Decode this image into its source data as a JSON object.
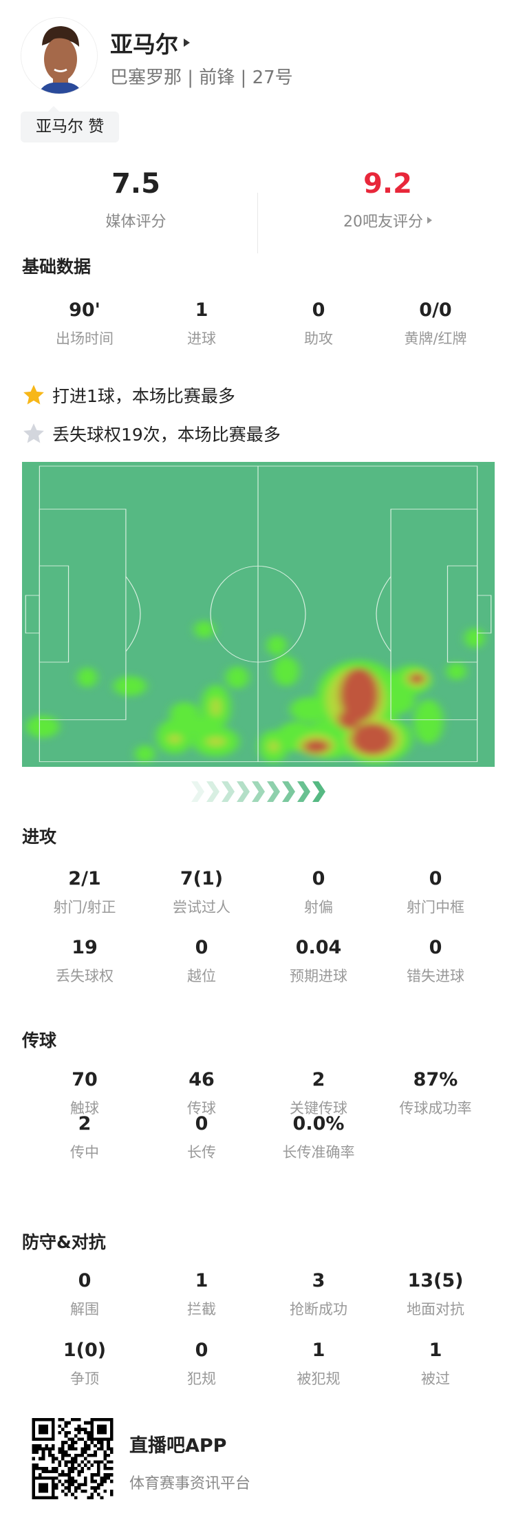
{
  "player": {
    "name": "亚马尔",
    "subtitle": "巴塞罗那 | 前锋 | 27号",
    "badge": "亚马尔 赞"
  },
  "ratings": {
    "media": {
      "value": "7.5",
      "label": "媒体评分"
    },
    "fans": {
      "value": "9.2",
      "label": "20吧友评分",
      "color": "#e8273a"
    }
  },
  "basic": {
    "title": "基础数据",
    "stats": [
      {
        "v": "90'",
        "l": "出场时间"
      },
      {
        "v": "1",
        "l": "进球"
      },
      {
        "v": "0",
        "l": "助攻"
      },
      {
        "v": "0/0",
        "l": "黄牌/红牌"
      }
    ]
  },
  "highlights": [
    {
      "icon": "gold-star",
      "text": "打进1球，本场比赛最多"
    },
    {
      "icon": "silver-star",
      "text": "丢失球权19次，本场比赛最多"
    }
  ],
  "attack": {
    "title": "进攻",
    "rows": [
      [
        {
          "v": "2/1",
          "l": "射门/射正"
        },
        {
          "v": "7(1)",
          "l": "尝试过人"
        },
        {
          "v": "0",
          "l": "射偏"
        },
        {
          "v": "0",
          "l": "射门中框"
        }
      ],
      [
        {
          "v": "19",
          "l": "丢失球权"
        },
        {
          "v": "0",
          "l": "越位"
        },
        {
          "v": "0.04",
          "l": "预期进球"
        },
        {
          "v": "0",
          "l": "错失进球"
        }
      ]
    ]
  },
  "passing": {
    "title": "传球",
    "rows": [
      [
        {
          "v": "70",
          "l": "触球"
        },
        {
          "v": "46",
          "l": "传球"
        },
        {
          "v": "2",
          "l": "关键传球"
        },
        {
          "v": "87%",
          "l": "传球成功率"
        }
      ],
      [
        {
          "v": "2",
          "l": "传中"
        },
        {
          "v": "0",
          "l": "长传"
        },
        {
          "v": "0.0%",
          "l": "长传准确率"
        }
      ]
    ]
  },
  "defense": {
    "title": "防守&对抗",
    "rows": [
      [
        {
          "v": "0",
          "l": "解围"
        },
        {
          "v": "1",
          "l": "拦截"
        },
        {
          "v": "3",
          "l": "抢断成功"
        },
        {
          "v": "13(5)",
          "l": "地面对抗"
        }
      ],
      [
        {
          "v": "1(0)",
          "l": "争顶"
        },
        {
          "v": "0",
          "l": "犯规"
        },
        {
          "v": "1",
          "l": "被犯规"
        },
        {
          "v": "1",
          "l": "被过"
        }
      ]
    ]
  },
  "footer": {
    "app": "直播吧APP",
    "tagline": "体育赛事资讯平台"
  },
  "colors": {
    "pitch": "#56b983",
    "heat_low": "#5ee83a",
    "heat_high": "#c0563e"
  }
}
